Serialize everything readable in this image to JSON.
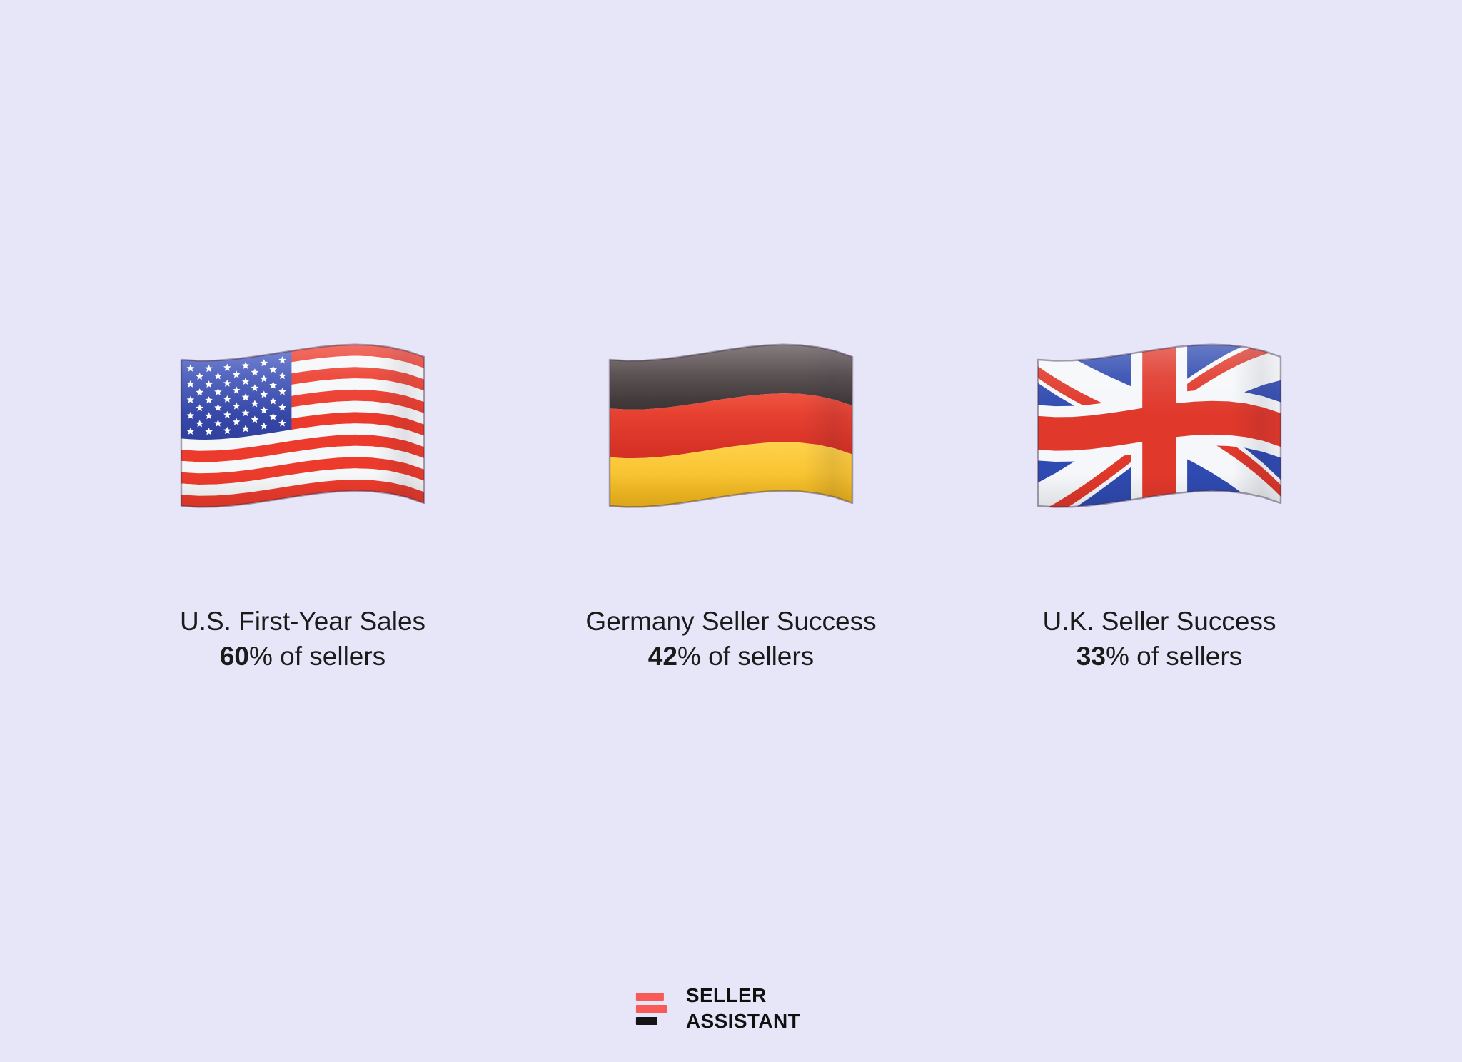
{
  "page": {
    "background": "#E7E6F8",
    "text_color": "#1B1B1B"
  },
  "columns": [
    {
      "flag": "us",
      "title": "U.S. First-Year Sales",
      "stat_bold": "60",
      "stat_rest": "% of sellers"
    },
    {
      "flag": "de",
      "title": "Germany Seller Success",
      "stat_bold": "42",
      "stat_rest": "% of sellers"
    },
    {
      "flag": "uk",
      "title": "U.K. Seller Success",
      "stat_bold": "33",
      "stat_rest": "% of sellers"
    }
  ],
  "logo": {
    "line1": "SELLER",
    "line2": "ASSISTANT",
    "bar_red": "#F85B57",
    "bar_black": "#141414",
    "text_color": "#101010"
  },
  "flag_colors": {
    "us": {
      "red": "#EC3B2C",
      "white": "#F6F7F9",
      "canton_top": "#4B61C6",
      "canton_bottom": "#2F3F9D",
      "star": "#FFFFFF"
    },
    "de": {
      "black_top": "#594C4E",
      "black_bottom": "#3A3233",
      "red_top": "#EE4937",
      "red_bottom": "#D63125",
      "gold_top": "#FFD24A",
      "gold_bottom": "#F2B81E"
    },
    "uk": {
      "blue": "#2F4AB0",
      "white": "#F5F7FA",
      "red": "#E0382B"
    }
  }
}
